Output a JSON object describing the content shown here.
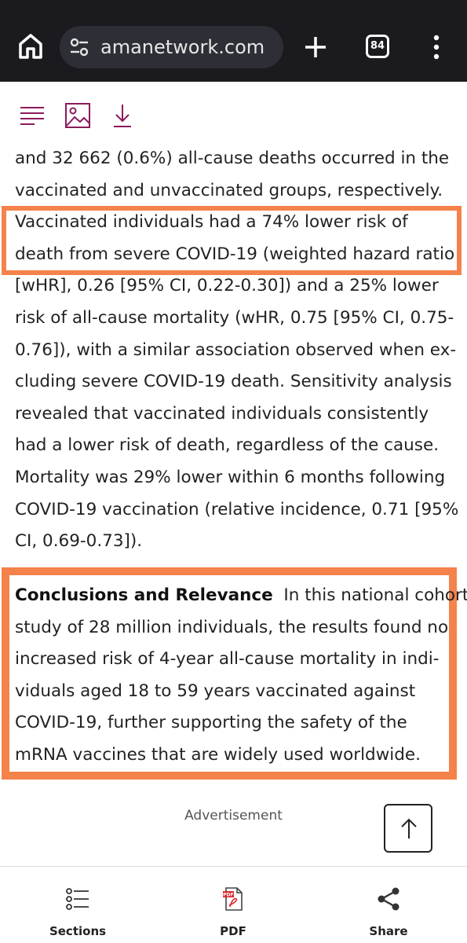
{
  "browser": {
    "url": "amanetwork.com",
    "tab_count": "84"
  },
  "article": {
    "lines": [
      "and 32 662 (0.6%) all-cause deaths occurred in the",
      "vaccinated and unvaccinated groups, respectively.",
      "Vaccinated individuals had a 74% lower risk of",
      "death from severe COVID-19 (weighted hazard ratio",
      "[wHR], 0.26 [95% CI, 0.22-0.30]) and a 25% lower",
      "risk of all-cause mortality (wHR, 0.75 [95% CI, 0.75-",
      "0.76]), with a similar association observed when ex-",
      "cluding severe COVID-19 death. Sensitivity analysis",
      "revealed that vaccinated individuals consistently",
      "had a lower risk of death, regardless of the cause.",
      "Mortality was 29% lower within 6 months following",
      "COVID-19 vaccination (relative incidence, 0.71 [95%",
      "CI, 0.69-0.73])."
    ],
    "conclusion_heading": "Conclusions and Relevance",
    "conclusion_lines": [
      "In this national cohort",
      "study of 28 million individuals, the results found no",
      "increased risk of 4-year all-cause mortality in indi-",
      "viduals aged 18 to 59 years vaccinated against",
      "COVID-19, further supporting the safety of the",
      "mRNA vaccines that are widely used worldwide."
    ]
  },
  "advertisement_label": "Advertisement",
  "bottom_nav": {
    "sections": "Sections",
    "pdf": "PDF",
    "share": "Share"
  },
  "colors": {
    "highlight": "#f4824a",
    "toolbar_icon": "#8b1a5c",
    "topbar": "#1b1b1f"
  }
}
